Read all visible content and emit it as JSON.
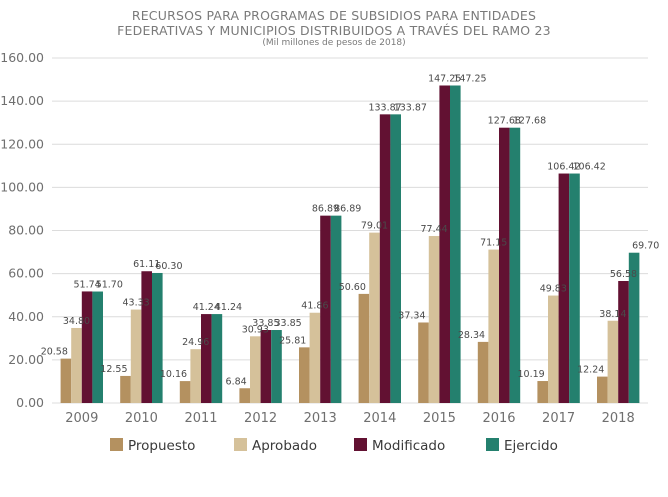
{
  "chart_data": {
    "type": "bar",
    "title_lines": [
      "RECURSOS PARA PROGRAMAS DE SUBSIDIOS PARA ENTIDADES",
      "FEDERATIVAS Y MUNICIPIOS DISTRIBUIDOS A TRAVÉS DEL RAMO 23"
    ],
    "subtitle": "(Mil millones de pesos de 2018)",
    "categories": [
      "2009",
      "2010",
      "2011",
      "2012",
      "2013",
      "2014",
      "2015",
      "2016",
      "2017",
      "2018"
    ],
    "series": [
      {
        "name": "Propuesto",
        "color": "#b49160",
        "values": [
          20.58,
          12.55,
          10.16,
          6.84,
          25.81,
          50.6,
          37.34,
          28.34,
          10.19,
          12.24
        ],
        "labels": [
          "20.58",
          "12.55",
          "10.16",
          "6.84",
          "25.81",
          "50.60",
          "37.34",
          "28.34",
          "10.19",
          "12.24"
        ]
      },
      {
        "name": "Aprobado",
        "color": "#d5c19a",
        "values": [
          34.8,
          43.33,
          24.96,
          30.93,
          41.86,
          79.01,
          77.44,
          71.15,
          49.83,
          38.14
        ],
        "labels": [
          "34.80",
          "43.33",
          "24.96",
          "30.93",
          "41.86",
          "79.01",
          "77.44",
          "71.15",
          "49.83",
          "38.14"
        ]
      },
      {
        "name": "Modificado",
        "color": "#621132",
        "values": [
          51.74,
          61.11,
          41.24,
          33.85,
          86.89,
          133.87,
          147.25,
          127.68,
          106.42,
          56.58
        ],
        "labels": [
          "51.74",
          "61.11",
          "41.24",
          "33.85",
          "86.89",
          "133.87",
          "147.25",
          "127.68",
          "106.42",
          "56.58"
        ]
      },
      {
        "name": "Ejercido",
        "color": "#24806e",
        "values": [
          51.7,
          60.3,
          41.24,
          33.85,
          86.89,
          133.87,
          147.25,
          127.68,
          106.42,
          69.7
        ],
        "labels": [
          "51.70",
          "60.30",
          "41.24",
          "33.85",
          "86.89",
          "133.87",
          "147.25",
          "127.68",
          "106.42",
          "69.70"
        ]
      }
    ],
    "y_ticks": [
      "0.00",
      "20.00",
      "40.00",
      "60.00",
      "80.00",
      "100.00",
      "120.00",
      "140.00",
      "160.00"
    ],
    "ylim": [
      0,
      160
    ],
    "grid": true,
    "legend_position": "bottom"
  }
}
